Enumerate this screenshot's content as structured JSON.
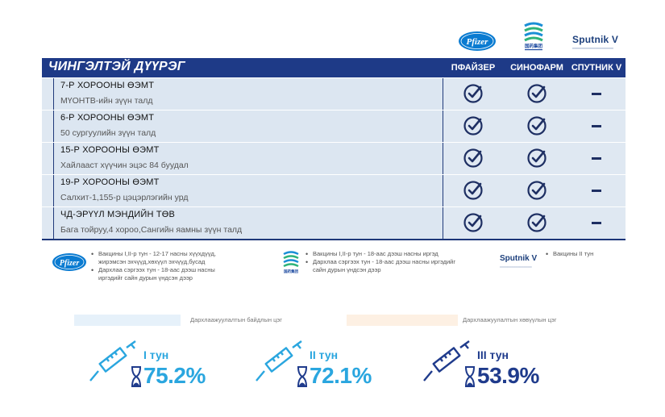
{
  "logos": {
    "pfizer": "Pfizer",
    "sinopharm_caption": "国药集团",
    "sputnik": "Sputnik V"
  },
  "table": {
    "district": "ЧИНГЭЛТЭЙ ДҮҮРЭГ",
    "columns": [
      "ПФАЙЗЕР",
      "СИНОФАРМ",
      "СПУТНИК V"
    ],
    "rows": [
      {
        "name": "7-Р ХОРООНЫ ӨЭМТ",
        "address": "МҮОНТВ-ийн зүүн талд",
        "pfizer": "check",
        "sinopharm": "check",
        "sputnik": "dash"
      },
      {
        "name": "6-Р ХОРООНЫ ӨЭМТ",
        "address": "50 сургуулийн зүүн талд",
        "pfizer": "check",
        "sinopharm": "check",
        "sputnik": "dash"
      },
      {
        "name": "15-Р ХОРООНЫ ӨЭМТ",
        "address": "Хайлааст хүүчин эцэс 84 буудал",
        "pfizer": "check",
        "sinopharm": "check",
        "sputnik": "dash"
      },
      {
        "name": "19-Р ХОРООНЫ ӨЭМТ",
        "address": "Салхит-1,155-р цэцэрлэгийн урд",
        "pfizer": "check",
        "sinopharm": "check",
        "sputnik": "dash"
      },
      {
        "name": "ЧД-ЭРҮҮЛ МЭНДИЙН ТӨВ",
        "address": "Бага тойруу,4 хороо,Сангийн яамны зүүн талд",
        "pfizer": "check",
        "sinopharm": "check",
        "sputnik": "dash"
      }
    ]
  },
  "legend": {
    "pfizer": [
      "Вакцины I,II-р тун - 12-17 насны хүүхдүүд, жирэмсэн эхчүүд,хөхүүл эхчүүд,бусад",
      "Дархлаа сэргээх тун - 18-аас дээш насны иргэдийг сайн дурын үндсэн дээр"
    ],
    "sinopharm": [
      "Вакцины I,II-р тун - 18-аас дээш насны иргэд",
      "Дархлаа сэргээх тун - 18-аас дээш насны иргэдийг сайн дурын үндсэн дээр"
    ],
    "sputnik": [
      "Вакцины II тун"
    ]
  },
  "bars": {
    "blue_label": "Дархлаажуулалтын байдлын цэг",
    "peach_label": "Дархлаажуулалтын хөвүүлын цэг"
  },
  "doses": [
    {
      "label": "I тун",
      "percent": "75.2%",
      "color": "#2aa6df"
    },
    {
      "label": "II тун",
      "percent": "72.1%",
      "color": "#2aa6df"
    },
    {
      "label": "III тун",
      "percent": "53.9%",
      "color": "#1f3b8c"
    }
  ]
}
